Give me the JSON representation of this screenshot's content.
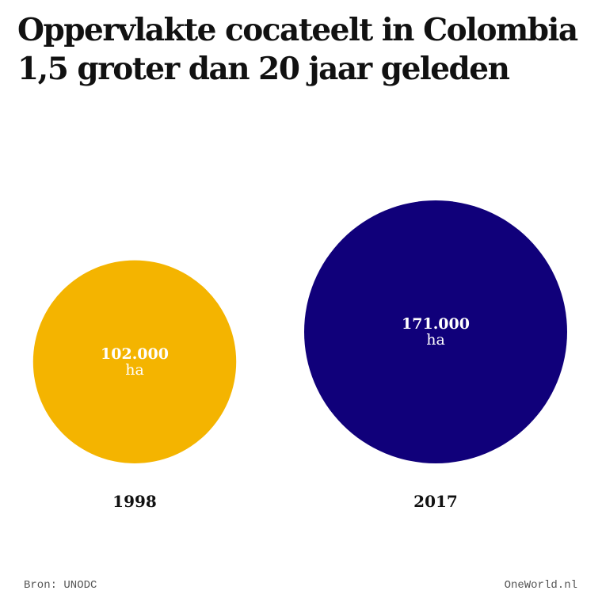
{
  "title": {
    "line1": "Oppervlakte cocateelt in Colombia",
    "line2": "1,5 groter dan 20 jaar geleden"
  },
  "footer": {
    "source": "Bron: UNODC",
    "brand": "OneWorld.nl"
  },
  "chart_data": {
    "type": "bubble",
    "title": "Oppervlakte cocateelt in Colombia 1,5 groter dan 20 jaar geleden",
    "categories": [
      "1998",
      "2017"
    ],
    "values": [
      102000,
      171000
    ],
    "unit": "ha",
    "value_labels": [
      "102.000",
      "171.000"
    ],
    "colors": [
      "#F4B400",
      "#10007A"
    ],
    "area_proportional": true,
    "legend": "none",
    "grid": false
  }
}
